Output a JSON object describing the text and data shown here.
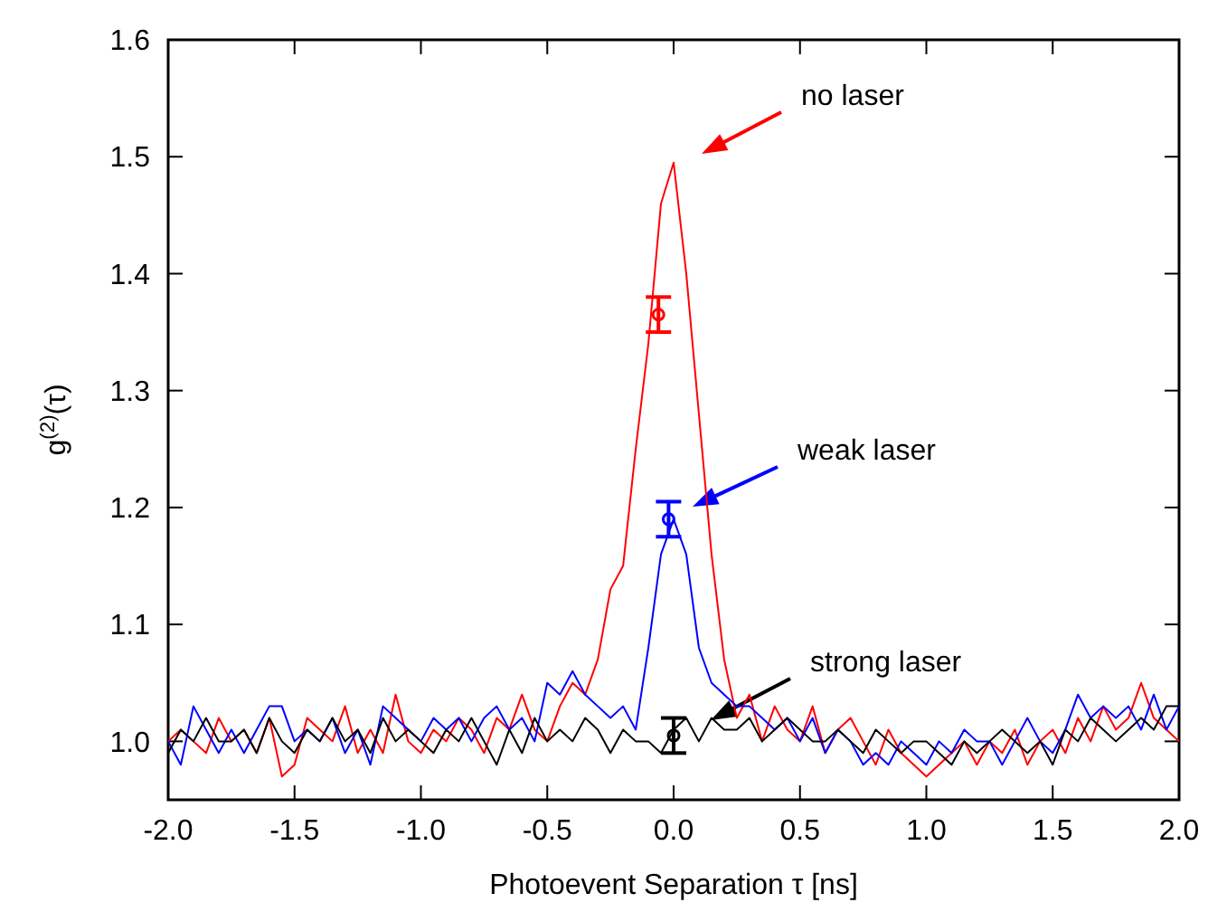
{
  "chart_data": {
    "type": "line",
    "xlabel": "Photoevent Separation τ [ns]",
    "ylabel": "g$^{(2)}$(τ)",
    "x": [
      -2,
      -1.95,
      -1.9,
      -1.85,
      -1.8,
      -1.75,
      -1.7,
      -1.65,
      -1.6,
      -1.55,
      -1.5,
      -1.45,
      -1.4,
      -1.35,
      -1.3,
      -1.25,
      -1.2,
      -1.15,
      -1.1,
      -1.05,
      -1,
      -0.95,
      -0.9,
      -0.85,
      -0.8,
      -0.75,
      -0.7,
      -0.65,
      -0.6,
      -0.55,
      -0.5,
      -0.45,
      -0.4,
      -0.35,
      -0.3,
      -0.25,
      -0.2,
      -0.15,
      -0.1,
      -0.05,
      0,
      0.05,
      0.1,
      0.15,
      0.2,
      0.25,
      0.3,
      0.35,
      0.4,
      0.45,
      0.5,
      0.55,
      0.6,
      0.65,
      0.7,
      0.75,
      0.8,
      0.85,
      0.9,
      0.95,
      1,
      1.05,
      1.1,
      1.15,
      1.2,
      1.25,
      1.3,
      1.35,
      1.4,
      1.45,
      1.5,
      1.55,
      1.6,
      1.65,
      1.7,
      1.75,
      1.8,
      1.85,
      1.9,
      1.95,
      2
    ],
    "series": [
      {
        "color": "#ff0000",
        "values": [
          1.0,
          1.01,
          1.0,
          0.99,
          1.02,
          1.0,
          1.01,
          0.99,
          1.02,
          0.97,
          0.98,
          1.02,
          1.01,
          1.0,
          1.03,
          0.99,
          1.01,
          0.99,
          1.04,
          1.0,
          0.99,
          1.01,
          1.0,
          1.02,
          1.01,
          0.99,
          1.02,
          1.01,
          1.04,
          1.01,
          1.0,
          1.03,
          1.05,
          1.04,
          1.07,
          1.13,
          1.15,
          1.25,
          1.34,
          1.46,
          1.495,
          1.4,
          1.28,
          1.16,
          1.07,
          1.02,
          1.04,
          1.0,
          1.03,
          1.01,
          1.0,
          1.03,
          0.99,
          1.01,
          1.02,
          1.0,
          0.98,
          1.01,
          0.99,
          0.98,
          0.97,
          0.98,
          0.99,
          1.0,
          0.98,
          1.0,
          0.99,
          1.01,
          0.98,
          1.0,
          1.01,
          0.99,
          1.02,
          1.0,
          1.03,
          1.01,
          1.02,
          1.05,
          1.02,
          1.01,
          1.0
        ]
      },
      {
        "color": "#0000ff",
        "values": [
          1.0,
          0.98,
          1.03,
          1.01,
          0.99,
          1.01,
          0.99,
          1.01,
          1.03,
          1.03,
          1.0,
          1.01,
          1.0,
          1.02,
          0.99,
          1.01,
          0.98,
          1.03,
          1.02,
          1.01,
          1.0,
          1.02,
          1.01,
          1.02,
          1.0,
          1.02,
          1.03,
          1.01,
          1.02,
          1.0,
          1.05,
          1.04,
          1.06,
          1.04,
          1.03,
          1.02,
          1.03,
          1.01,
          1.08,
          1.16,
          1.19,
          1.16,
          1.08,
          1.05,
          1.04,
          1.03,
          1.03,
          1.02,
          1.01,
          1.02,
          1.0,
          1.02,
          0.99,
          1.01,
          1.0,
          0.98,
          0.99,
          0.98,
          1.0,
          0.99,
          0.98,
          1.0,
          0.99,
          1.01,
          1.0,
          1.0,
          0.98,
          1.0,
          1.02,
          1.0,
          0.99,
          1.01,
          1.04,
          1.02,
          1.03,
          1.02,
          1.03,
          1.01,
          1.04,
          1.01,
          1.03
        ]
      },
      {
        "color": "#000000",
        "values": [
          0.99,
          1.01,
          1.0,
          1.02,
          1.0,
          1.0,
          1.01,
          0.99,
          1.02,
          1.0,
          0.99,
          1.01,
          1.0,
          1.02,
          1.0,
          1.01,
          0.99,
          1.02,
          1.0,
          1.01,
          1.0,
          0.99,
          1.01,
          1.0,
          1.02,
          1.0,
          0.98,
          1.01,
          0.99,
          1.02,
          1.0,
          1.01,
          1.0,
          1.02,
          1.01,
          0.99,
          1.01,
          1.0,
          1.0,
          0.99,
          1.01,
          1.02,
          1.0,
          1.02,
          1.01,
          1.01,
          1.02,
          1.0,
          1.01,
          1.02,
          1.01,
          1.0,
          1.0,
          1.01,
          1.0,
          0.99,
          1.01,
          1.0,
          0.99,
          1.0,
          1.0,
          0.99,
          0.98,
          1.0,
          0.99,
          1.0,
          1.01,
          1.0,
          0.99,
          1.0,
          0.98,
          1.01,
          1.0,
          1.02,
          1.01,
          1.0,
          1.01,
          1.02,
          1.01,
          1.03,
          1.03
        ]
      },
      {
        "type": "scatter",
        "marker": "circle",
        "color": "#ff0000",
        "x": [
          -0.06
        ],
        "values": [
          1.365
        ],
        "errors": [
          0.015
        ]
      },
      {
        "type": "scatter",
        "marker": "circle",
        "color": "#0000ff",
        "x": [
          -0.02
        ],
        "values": [
          1.19
        ],
        "errors": [
          0.015
        ]
      },
      {
        "type": "scatter",
        "marker": "circle",
        "color": "#000000",
        "x": [
          0.0
        ],
        "values": [
          1.005
        ],
        "errors": [
          0.015
        ]
      }
    ],
    "annotations": [
      "no laser",
      "weak laser",
      "strong laser"
    ],
    "xlim": [
      -2,
      2
    ],
    "xticks": [
      {
        "value": -2,
        "label": "-2.0"
      },
      {
        "value": -1.5,
        "label": "-1.5"
      },
      {
        "value": -1,
        "label": "-1.0"
      },
      {
        "value": -0.5,
        "label": "-0.5"
      },
      {
        "value": 0,
        "label": "0.0"
      },
      {
        "value": 0.5,
        "label": "0.5"
      },
      {
        "value": 1,
        "label": "1.0"
      },
      {
        "value": 1.5,
        "label": "1.5"
      },
      {
        "value": 2,
        "label": "2.0"
      }
    ],
    "ylim": [
      0.95,
      1.6
    ],
    "yticks": [
      {
        "value": 1,
        "label": "1.0"
      },
      {
        "value": 1.1,
        "label": "1.1"
      },
      {
        "value": 1.2,
        "label": "1.2"
      },
      {
        "value": 1.3,
        "label": "1.3"
      },
      {
        "value": 1.4,
        "label": "1.4"
      },
      {
        "value": 1.5,
        "label": "1.5"
      },
      {
        "value": 1.6,
        "label": "1.6"
      }
    ],
    "grid": false
  }
}
